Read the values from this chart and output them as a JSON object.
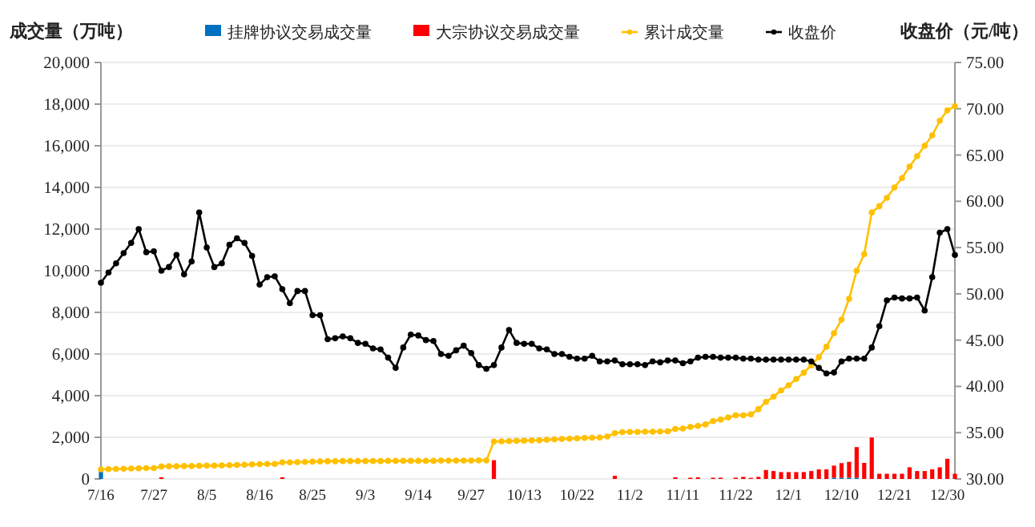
{
  "chart_data": {
    "type": "bar",
    "stacked": true,
    "ylabel": "成交量（万吨）",
    "y2label": "收盘价（元/吨）",
    "categories": [
      "7/16",
      null,
      null,
      null,
      null,
      null,
      null,
      "7/27",
      null,
      null,
      null,
      null,
      null,
      null,
      "8/5",
      null,
      null,
      null,
      null,
      null,
      null,
      "8/16",
      null,
      null,
      null,
      null,
      null,
      null,
      "8/25",
      null,
      null,
      null,
      null,
      null,
      null,
      "9/3",
      null,
      null,
      null,
      null,
      null,
      null,
      "9/14",
      null,
      null,
      null,
      null,
      null,
      null,
      "9/27",
      null,
      null,
      null,
      null,
      null,
      null,
      "10/13",
      null,
      null,
      null,
      null,
      null,
      null,
      "10/22",
      null,
      null,
      null,
      null,
      null,
      null,
      "11/2",
      null,
      null,
      null,
      null,
      null,
      null,
      "11/11",
      null,
      null,
      null,
      null,
      null,
      null,
      "11/22",
      null,
      null,
      null,
      null,
      null,
      null,
      "12/1",
      null,
      null,
      null,
      null,
      null,
      null,
      "12/10",
      null,
      null,
      null,
      null,
      null,
      null,
      "12/21",
      null,
      null,
      null,
      null,
      null,
      null,
      "12/30",
      null
    ],
    "ylim": [
      0,
      20000
    ],
    "yticks": [
      0,
      {
        "value": 2000,
        "label": "2,000"
      },
      {
        "value": 4000,
        "label": "4,000"
      },
      {
        "value": 6000,
        "label": "6,000"
      },
      {
        "value": 8000,
        "label": "8,000"
      },
      {
        "value": 10000,
        "label": "10,000"
      },
      {
        "value": 12000,
        "label": "12,000"
      },
      {
        "value": 14000,
        "label": "14,000"
      },
      {
        "value": 16000,
        "label": "16,000"
      },
      {
        "value": 18000,
        "label": "18,000"
      },
      {
        "value": 20000,
        "label": "20,000"
      }
    ],
    "y2lim": [
      30,
      75
    ],
    "y2ticks": [
      {
        "value": 30,
        "label": "30.00"
      },
      {
        "value": 35,
        "label": "35.00"
      },
      {
        "value": 40,
        "label": "40.00"
      },
      {
        "value": 45,
        "label": "45.00"
      },
      {
        "value": 50,
        "label": "50.00"
      },
      {
        "value": 55,
        "label": "55.00"
      },
      {
        "value": 60,
        "label": "60.00"
      },
      {
        "value": 65,
        "label": "65.00"
      },
      {
        "value": 70,
        "label": "70.00"
      },
      {
        "value": 75,
        "label": "75.00"
      }
    ],
    "grid": "y",
    "legend": "top",
    "series": [
      {
        "name": "挂牌协议交易成交量",
        "color": "#0070c0",
        "values": [
          410,
          0,
          0,
          0,
          0,
          0,
          0,
          0,
          0,
          0,
          0,
          0,
          0,
          0,
          0,
          0,
          0,
          0,
          0,
          0,
          0,
          0,
          0,
          0,
          0,
          0,
          0,
          0,
          0,
          0,
          0,
          0,
          0,
          0,
          0,
          0,
          0,
          0,
          0,
          0,
          0,
          0,
          0,
          0,
          0,
          0,
          0,
          0,
          0,
          0,
          0,
          0,
          0,
          0,
          0,
          0,
          0,
          0,
          0,
          0,
          0,
          0,
          0,
          0,
          0,
          0,
          0,
          0,
          0,
          0,
          0,
          0,
          0,
          0,
          0,
          0,
          0,
          0,
          0,
          0,
          0,
          0,
          0,
          0,
          0,
          0,
          0,
          0,
          0,
          0,
          0,
          0,
          0,
          0,
          0,
          0,
          0,
          60,
          60,
          60,
          60,
          0,
          0,
          0,
          0,
          0,
          0,
          0,
          0,
          0,
          0,
          0,
          0,
          0
        ]
      },
      {
        "name": "大宗协议交易成交量",
        "color": "#ff0000",
        "values": [
          0,
          0,
          0,
          null,
          0,
          0,
          0,
          0,
          80,
          0,
          0,
          0,
          0,
          0,
          0,
          0,
          0,
          0,
          0,
          0,
          0,
          0,
          0,
          0,
          80,
          0,
          0,
          0,
          0,
          0,
          0,
          0,
          0,
          0,
          0,
          0,
          0,
          0,
          0,
          0,
          0,
          0,
          0,
          0,
          0,
          0,
          0,
          0,
          0,
          0,
          0,
          0,
          900,
          0,
          0,
          0,
          0,
          0,
          0,
          0,
          0,
          0,
          0,
          0,
          0,
          0,
          0,
          0,
          150,
          0,
          0,
          0,
          0,
          0,
          0,
          0,
          80,
          0,
          60,
          80,
          0,
          60,
          60,
          0,
          60,
          100,
          50,
          100,
          430,
          380,
          330,
          330,
          330,
          330,
          380,
          460,
          460,
          580,
          700,
          760,
          1470,
          770,
          1990,
          250,
          250,
          250,
          250,
          560,
          380,
          380,
          460,
          560,
          970,
          250
        ]
      },
      {
        "name": "累计成交量",
        "type": "line",
        "color": "#ffc000",
        "marker": "circle",
        "values": [
          460,
          470,
          480,
          490,
          500,
          510,
          520,
          520,
          600,
          610,
          610,
          620,
          620,
          630,
          640,
          640,
          650,
          660,
          670,
          680,
          700,
          710,
          720,
          720,
          800,
          800,
          810,
          820,
          830,
          840,
          850,
          850,
          860,
          860,
          860,
          860,
          860,
          860,
          870,
          870,
          870,
          870,
          870,
          870,
          870,
          880,
          880,
          880,
          880,
          880,
          890,
          890,
          1800,
          1810,
          1820,
          1830,
          1840,
          1850,
          1860,
          1880,
          1900,
          1920,
          1930,
          1950,
          1970,
          1980,
          1990,
          2040,
          2200,
          2250,
          2260,
          2260,
          2270,
          2270,
          2280,
          2290,
          2400,
          2420,
          2500,
          2550,
          2620,
          2780,
          2850,
          2950,
          3060,
          3060,
          3100,
          3350,
          3700,
          3950,
          4250,
          4500,
          4800,
          5100,
          5450,
          5850,
          6350,
          7000,
          7650,
          8650,
          10000,
          10800,
          12800,
          13100,
          13500,
          14000,
          14450,
          15000,
          15500,
          16000,
          16500,
          17200,
          17700,
          17900
        ]
      },
      {
        "name": "收盘价",
        "type": "line",
        "axis": "y2",
        "color": "#000000",
        "marker": "circle",
        "values": [
          51.2,
          52.3,
          53.3,
          54.4,
          55.5,
          57.0,
          54.5,
          54.6,
          52.5,
          52.9,
          54.2,
          52.1,
          53.5,
          58.8,
          55.0,
          52.9,
          53.3,
          55.3,
          56.0,
          55.5,
          54.1,
          51.0,
          51.8,
          51.9,
          50.5,
          49.0,
          50.3,
          50.3,
          47.7,
          47.7,
          45.1,
          45.2,
          45.4,
          45.2,
          44.7,
          44.6,
          44.1,
          44.0,
          43.1,
          42.0,
          44.2,
          45.6,
          45.5,
          45.0,
          44.9,
          43.5,
          43.3,
          43.9,
          44.4,
          43.6,
          42.3,
          41.9,
          42.3,
          44.2,
          46.1,
          44.7,
          44.6,
          44.6,
          44.1,
          44.0,
          43.5,
          43.5,
          43.2,
          43.0,
          43.0,
          43.3,
          42.7,
          42.7,
          42.8,
          42.4,
          42.4,
          42.4,
          42.3,
          42.7,
          42.6,
          42.8,
          42.8,
          42.5,
          42.7,
          43.1,
          43.2,
          43.2,
          43.1,
          43.1,
          43.1,
          43.0,
          43.0,
          42.9,
          42.9,
          42.9,
          42.9,
          42.9,
          42.9,
          42.9,
          42.7,
          42.0,
          41.4,
          41.5,
          42.7,
          43.0,
          43.0,
          43.0,
          44.2,
          46.5,
          49.3,
          49.6,
          49.5,
          49.5,
          49.6,
          48.2,
          51.8,
          56.6,
          57.0,
          54.2
        ]
      }
    ]
  }
}
